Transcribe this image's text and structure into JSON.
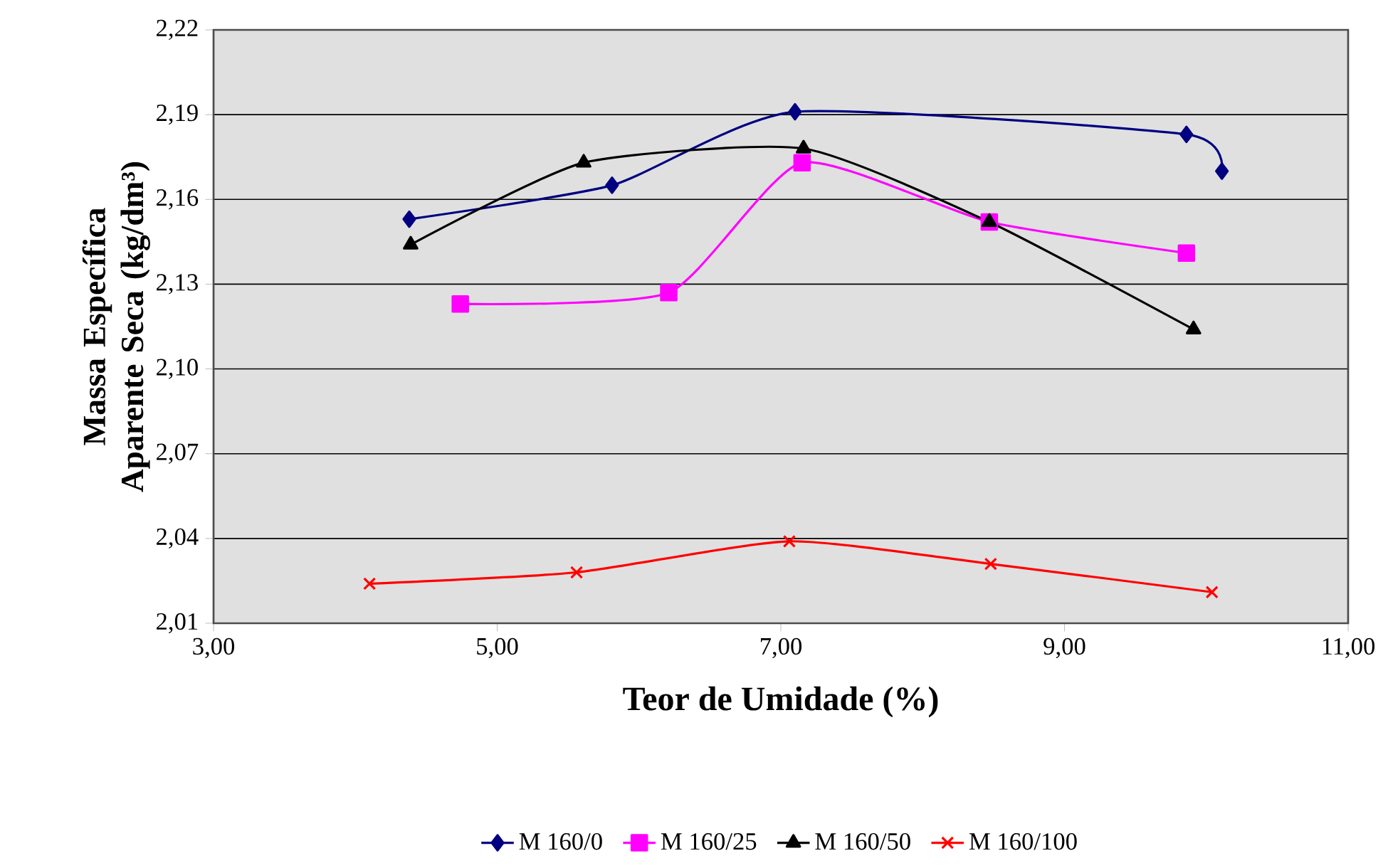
{
  "chart_data": {
    "type": "line",
    "xlabel": "Teor de Umidade (%)",
    "ylabel": "Massa Específica Aparente Seca (kg/dm³)",
    "xlim": [
      3,
      11
    ],
    "ylim": [
      2.01,
      2.22
    ],
    "xticks": [
      {
        "value": 3,
        "label": "3,00"
      },
      {
        "value": 5,
        "label": "5,00"
      },
      {
        "value": 7,
        "label": "7,00"
      },
      {
        "value": 9,
        "label": "9,00"
      },
      {
        "value": 11,
        "label": "11,00"
      }
    ],
    "yticks": [
      {
        "value": 2.01,
        "label": "2,01"
      },
      {
        "value": 2.04,
        "label": "2,04"
      },
      {
        "value": 2.07,
        "label": "2,07"
      },
      {
        "value": 2.1,
        "label": "2,10"
      },
      {
        "value": 2.13,
        "label": "2,13"
      },
      {
        "value": 2.16,
        "label": "2,16"
      },
      {
        "value": 2.19,
        "label": "2,19"
      },
      {
        "value": 2.22,
        "label": "2,22"
      }
    ],
    "grid": "y",
    "legend": "bottom",
    "line_style": "solid",
    "series": [
      {
        "name": "M 160/0",
        "color": "#000080",
        "marker": "diamond",
        "x": [
          4.38,
          5.81,
          7.1,
          9.86,
          10.11
        ],
        "values": [
          2.153,
          2.165,
          2.191,
          2.183,
          2.17
        ]
      },
      {
        "name": "M 160/25",
        "color": "#ff00ff",
        "marker": "square",
        "x": [
          4.74,
          6.21,
          7.15,
          8.47,
          9.86
        ],
        "values": [
          2.123,
          2.127,
          2.173,
          2.152,
          2.141
        ]
      },
      {
        "name": "M 160/50",
        "color": "#000000",
        "marker": "triangle",
        "x": [
          4.39,
          5.61,
          7.16,
          8.47,
          9.91
        ],
        "values": [
          2.144,
          2.173,
          2.178,
          2.152,
          2.114
        ]
      },
      {
        "name": "M 160/100",
        "color": "#ff0000",
        "marker": "cross",
        "x": [
          4.1,
          5.56,
          7.06,
          8.48,
          10.04
        ],
        "values": [
          2.024,
          2.028,
          2.039,
          2.031,
          2.021
        ]
      }
    ]
  }
}
